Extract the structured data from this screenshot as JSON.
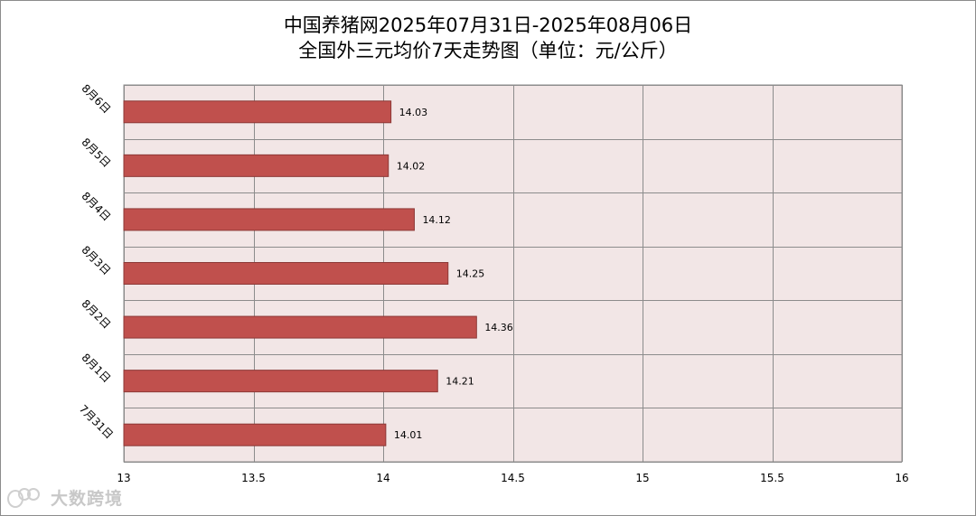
{
  "chart_data": {
    "type": "bar",
    "orientation": "horizontal",
    "title": "中国养猪网2025年07月31日-2025年08月06日",
    "subtitle": "全国外三元均价7天走势图（单位：元/公斤）",
    "categories": [
      "8月6日",
      "8月5日",
      "8月4日",
      "8月3日",
      "8月2日",
      "8月1日",
      "7月31日"
    ],
    "values": [
      14.03,
      14.02,
      14.12,
      14.25,
      14.36,
      14.21,
      14.01
    ],
    "data_labels": [
      "14.03",
      "14.02",
      "14.12",
      "14.25",
      "14.36",
      "14.21",
      "14.01"
    ],
    "xlim": [
      13,
      16
    ],
    "x_ticks": [
      13,
      13.5,
      14,
      14.5,
      15,
      15.5,
      16
    ],
    "x_tick_labels": [
      "13",
      "13.5",
      "14",
      "14.5",
      "15",
      "15.5",
      "16"
    ],
    "grid": true,
    "legend": "none"
  },
  "colors": {
    "bar_fill": "#c0504d",
    "bar_stroke": "#8c3836",
    "plot_background": "#f2e6e6",
    "grid": "#8c8c8c"
  },
  "watermark": {
    "text": "大数跨境",
    "icon": "logo-circles-icon"
  }
}
